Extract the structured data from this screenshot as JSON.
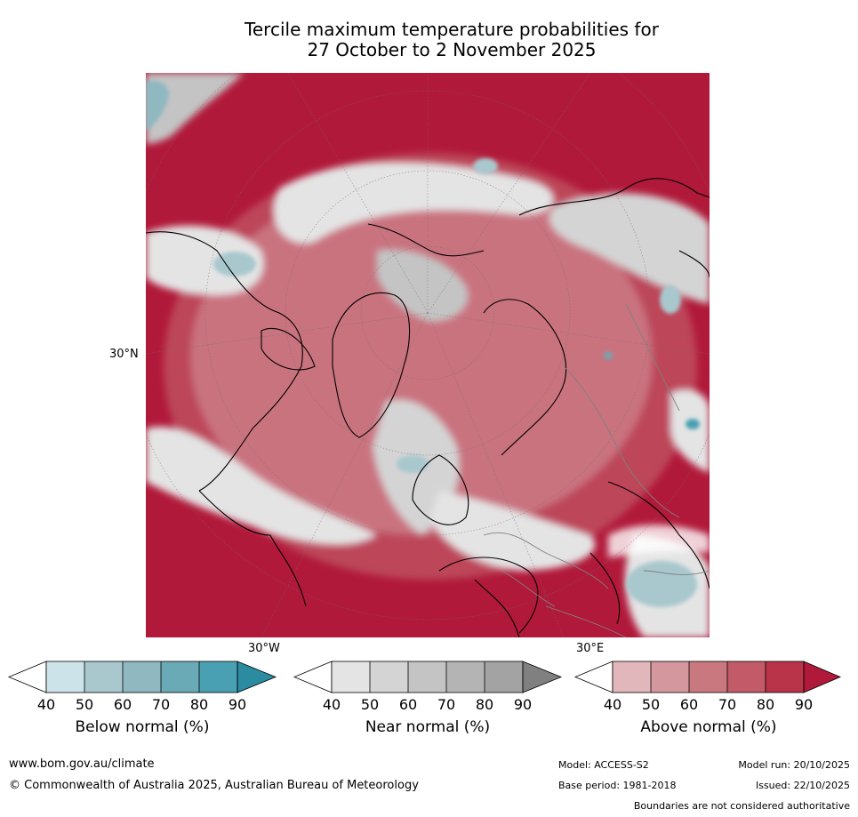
{
  "title": {
    "line1": "Tercile maximum temperature probabilities for",
    "line2": "27 October to 2 November 2025"
  },
  "map": {
    "projection": "north-polar stereographic",
    "labels": {
      "lat_30n": "30°N",
      "lon_30w": "30°W",
      "lon_30e": "30°E"
    }
  },
  "colorbars": [
    {
      "title": "Below normal (%)",
      "ticks": [
        "40",
        "50",
        "60",
        "70",
        "80",
        "90"
      ],
      "colors": [
        "#ffffff",
        "#cde3ea",
        "#a9c8ce",
        "#8fb8c0",
        "#6aa9b6",
        "#49a0b2",
        "#2a8ba1"
      ]
    },
    {
      "title": "Near normal (%)",
      "ticks": [
        "40",
        "50",
        "60",
        "70",
        "80",
        "90"
      ],
      "colors": [
        "#ffffff",
        "#e4e4e4",
        "#d4d4d4",
        "#c4c4c4",
        "#b4b4b4",
        "#a3a3a3",
        "#808080"
      ]
    },
    {
      "title": "Above normal (%)",
      "ticks": [
        "40",
        "50",
        "60",
        "70",
        "80",
        "90"
      ],
      "colors": [
        "#ffffff",
        "#e2b7bc",
        "#d5979e",
        "#c97880",
        "#c25a67",
        "#b93449",
        "#b1193a"
      ]
    }
  ],
  "footer": {
    "url": "www.bom.gov.au/climate",
    "copyright": "© Commonwealth of Australia 2025, Australian Bureau of Meteorology",
    "model": "Model: ACCESS-S2",
    "base_period": "Base period: 1981-2018",
    "model_run": "Model run: 20/10/2025",
    "issued": "Issued: 22/10/2025",
    "boundaries": "Boundaries are not considered authoritative"
  }
}
